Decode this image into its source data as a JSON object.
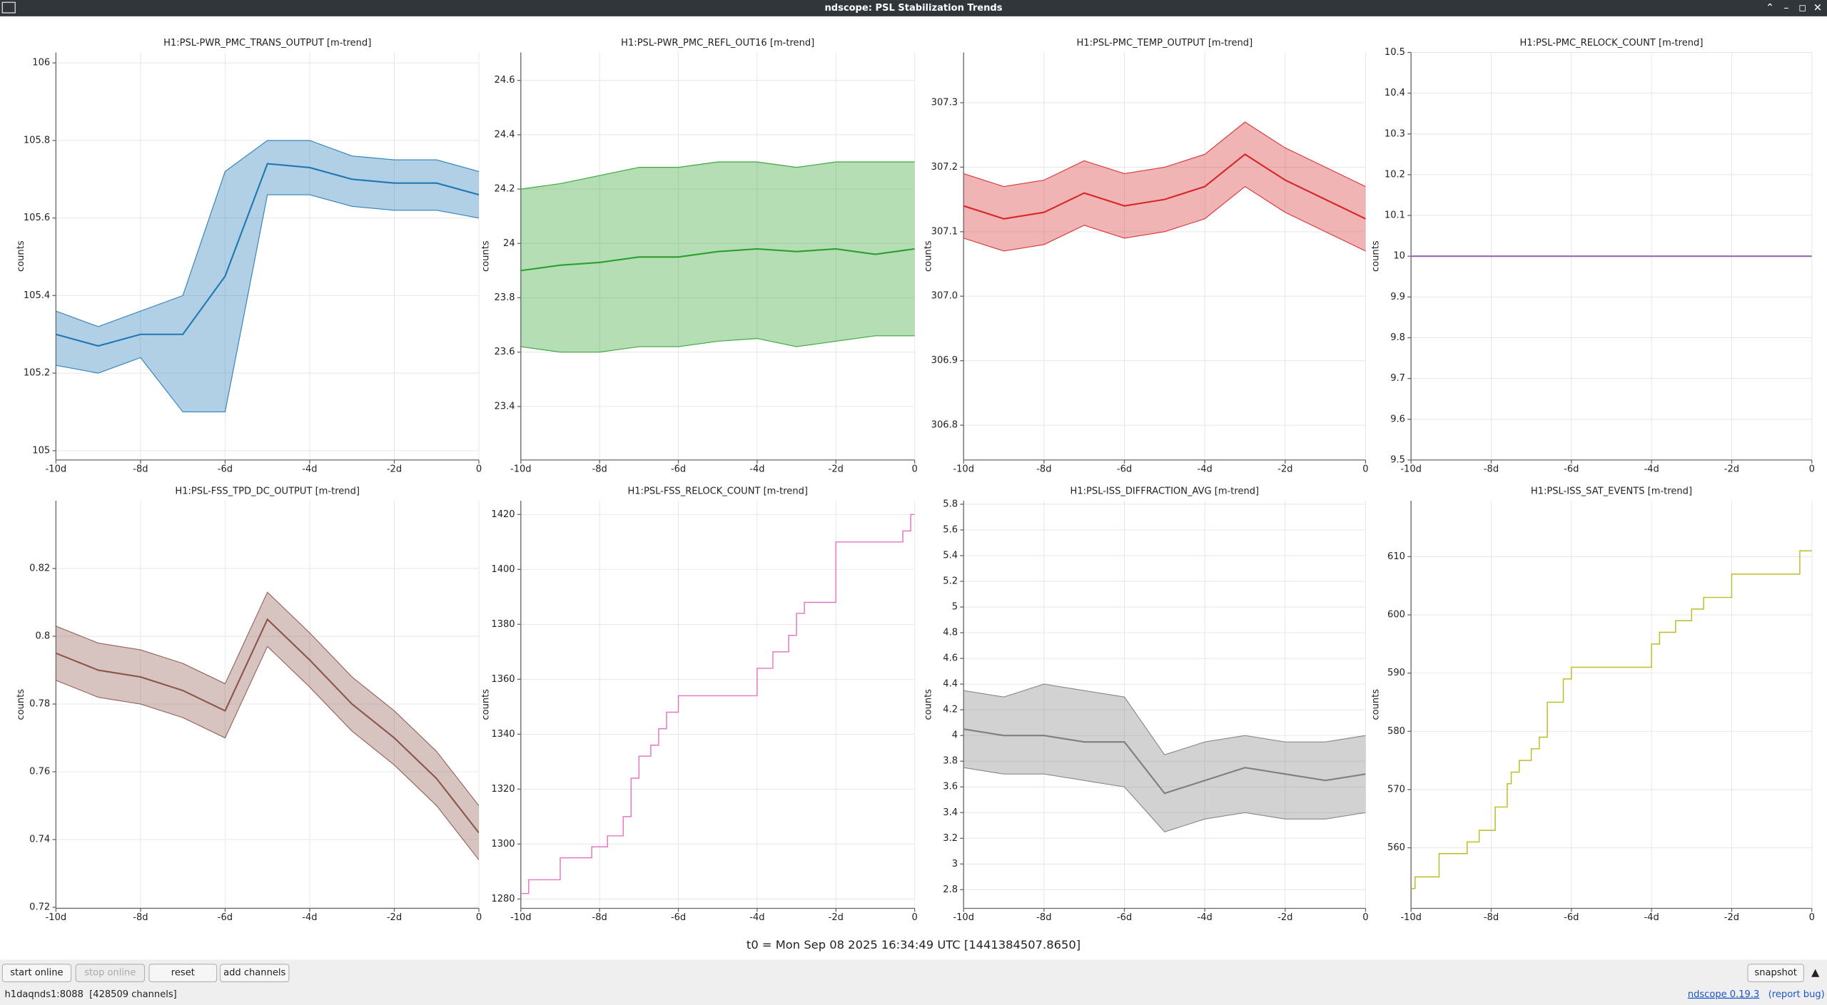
{
  "window": {
    "title": "ndscope: PSL Stabilization Trends"
  },
  "ylabel": "counts",
  "xaxis": {
    "xlim": [
      -10,
      0
    ],
    "xticks": [
      {
        "value": -10,
        "label": "-10d"
      },
      {
        "value": -8,
        "label": "-8d"
      },
      {
        "value": -6,
        "label": "-6d"
      },
      {
        "value": -4,
        "label": "-4d"
      },
      {
        "value": -2,
        "label": "-2d"
      },
      0
    ]
  },
  "x": [
    -10,
    -9,
    -8,
    -7,
    -6,
    -5,
    -4,
    -3,
    -2,
    -1,
    0
  ],
  "plots": [
    {
      "title": "H1:PSL-PWR_PMC_TRANS_OUTPUT [m-trend]",
      "color": "#1f77b4",
      "ylim": [
        104.976,
        106.027
      ],
      "yticks": [
        105,
        105.2,
        105.4,
        105.6,
        105.8,
        106
      ],
      "values": [
        105.3,
        105.27,
        105.3,
        105.3,
        105.45,
        105.74,
        105.73,
        105.7,
        105.69,
        105.69,
        105.66
      ],
      "min": [
        105.22,
        105.2,
        105.24,
        105.1,
        105.1,
        105.66,
        105.66,
        105.63,
        105.62,
        105.62,
        105.6
      ],
      "max": [
        105.36,
        105.32,
        105.36,
        105.4,
        105.72,
        105.8,
        105.8,
        105.76,
        105.75,
        105.75,
        105.72
      ]
    },
    {
      "title": "H1:PSL-PWR_PMC_REFL_OUT16 [m-trend]",
      "color": "#2ca02c",
      "ylim": [
        23.203,
        24.703
      ],
      "yticks": [
        23.4,
        23.6,
        23.8,
        24,
        24.2,
        24.4,
        24.6
      ],
      "values": [
        23.9,
        23.92,
        23.93,
        23.95,
        23.95,
        23.97,
        23.98,
        23.97,
        23.98,
        23.96,
        23.98
      ],
      "min": [
        23.62,
        23.6,
        23.6,
        23.62,
        23.62,
        23.64,
        23.65,
        23.62,
        23.64,
        23.66,
        23.66
      ],
      "max": [
        24.2,
        24.22,
        24.25,
        24.28,
        24.28,
        24.3,
        24.3,
        24.28,
        24.3,
        24.3,
        24.3
      ]
    },
    {
      "title": "H1:PSL-PMC_TEMP_OUTPUT [m-trend]",
      "color": "#d62728",
      "ylim": [
        306.746,
        307.378
      ],
      "yticks": [
        306.8,
        306.9,
        {
          "value": 307,
          "label": "307.0"
        },
        307.1,
        307.2,
        307.3
      ],
      "values": [
        307.14,
        307.12,
        307.13,
        307.16,
        307.14,
        307.15,
        307.17,
        307.22,
        307.18,
        307.15,
        307.12
      ],
      "min": [
        307.09,
        307.07,
        307.08,
        307.11,
        307.09,
        307.1,
        307.12,
        307.17,
        307.13,
        307.1,
        307.07
      ],
      "max": [
        307.19,
        307.17,
        307.18,
        307.21,
        307.19,
        307.2,
        307.22,
        307.27,
        307.23,
        307.2,
        307.17
      ]
    },
    {
      "title": "H1:PSL-PMC_RELOCK_COUNT [m-trend]",
      "color": "#9467bd",
      "ylim": [
        9.5,
        10.5
      ],
      "yticks": [
        9.5,
        9.6,
        9.7,
        9.8,
        9.9,
        10,
        10.1,
        10.2,
        10.3,
        10.4,
        10.5
      ],
      "values": [
        10,
        10,
        10,
        10,
        10,
        10,
        10,
        10,
        10,
        10,
        10
      ]
    },
    {
      "title": "H1:PSL-FSS_TPD_DC_OUTPUT [m-trend]",
      "color": "#8c564b",
      "ylim": [
        0.7197,
        0.84
      ],
      "yticks": [
        0.72,
        0.74,
        0.76,
        0.78,
        0.8,
        0.82
      ],
      "values": [
        0.795,
        0.79,
        0.788,
        0.784,
        0.778,
        0.805,
        0.793,
        0.78,
        0.77,
        0.758,
        0.742
      ],
      "min": [
        0.787,
        0.782,
        0.78,
        0.776,
        0.77,
        0.797,
        0.785,
        0.772,
        0.762,
        0.75,
        0.734
      ],
      "max": [
        0.803,
        0.798,
        0.796,
        0.792,
        0.786,
        0.813,
        0.801,
        0.788,
        0.778,
        0.766,
        0.75
      ]
    },
    {
      "title": "H1:PSL-FSS_RELOCK_COUNT [m-trend]",
      "color": "#e377c2",
      "step": true,
      "ylim": [
        1276.6,
        1425
      ],
      "yticks": [
        1280,
        1300,
        1320,
        1340,
        1360,
        1380,
        1400,
        1420
      ],
      "x": [
        -10,
        -9.8,
        -9.0,
        -8.2,
        -7.8,
        -7.4,
        -7.2,
        -7.0,
        -6.7,
        -6.5,
        -6.3,
        -6.0,
        -4.0,
        -3.6,
        -3.2,
        -3.0,
        -2.8,
        -2.0,
        -0.3,
        -0.1
      ],
      "values": [
        1282,
        1287,
        1295,
        1299,
        1303,
        1310,
        1324,
        1332,
        1336,
        1342,
        1348,
        1354,
        1364,
        1370,
        1376,
        1384,
        1388,
        1410,
        1414,
        1420
      ]
    },
    {
      "title": "H1:PSL-ISS_DIFFRACTION_AVG [m-trend]",
      "color": "#7f7f7f",
      "ylim": [
        2.655,
        5.827
      ],
      "yticks": [
        2.8,
        3,
        3.2,
        3.4,
        3.6,
        3.8,
        4,
        4.2,
        4.4,
        4.6,
        4.8,
        5,
        5.2,
        5.4,
        5.6,
        5.8
      ],
      "values": [
        4.05,
        4.0,
        4.0,
        3.95,
        3.95,
        3.55,
        3.65,
        3.75,
        3.7,
        3.65,
        3.7
      ],
      "min": [
        3.75,
        3.7,
        3.7,
        3.65,
        3.6,
        3.25,
        3.35,
        3.4,
        3.35,
        3.35,
        3.4
      ],
      "max": [
        4.35,
        4.3,
        4.4,
        4.35,
        4.3,
        3.85,
        3.95,
        4.0,
        3.95,
        3.95,
        4.0
      ]
    },
    {
      "title": "H1:PSL-ISS_SAT_EVENTS [m-trend]",
      "color": "#bcbd22",
      "step": true,
      "ylim": [
        549.6,
        619.6
      ],
      "yticks": [
        560,
        570,
        580,
        590,
        600,
        610
      ],
      "x": [
        -10,
        -9.9,
        -9.3,
        -8.6,
        -8.3,
        -7.9,
        -7.6,
        -7.5,
        -7.3,
        -7.0,
        -6.8,
        -6.6,
        -6.2,
        -6.0,
        -4.0,
        -3.8,
        -3.4,
        -3.0,
        -2.7,
        -2.0,
        -0.3
      ],
      "values": [
        553,
        555,
        559,
        561,
        563,
        567,
        571,
        573,
        575,
        577,
        579,
        585,
        589,
        591,
        595,
        597,
        599,
        601,
        603,
        607,
        611
      ]
    }
  ],
  "t0": "t0 = Mon Sep 08 2025 16:34:49 UTC [1441384507.8650]",
  "buttons": [
    "start online",
    "stop online",
    "reset",
    "add channels"
  ],
  "snapshot": "snapshot",
  "status": "h1daqnds1:8088  [428509 channels]",
  "version": {
    "name": "ndscope 0.19.3",
    "report": "(report bug)"
  }
}
